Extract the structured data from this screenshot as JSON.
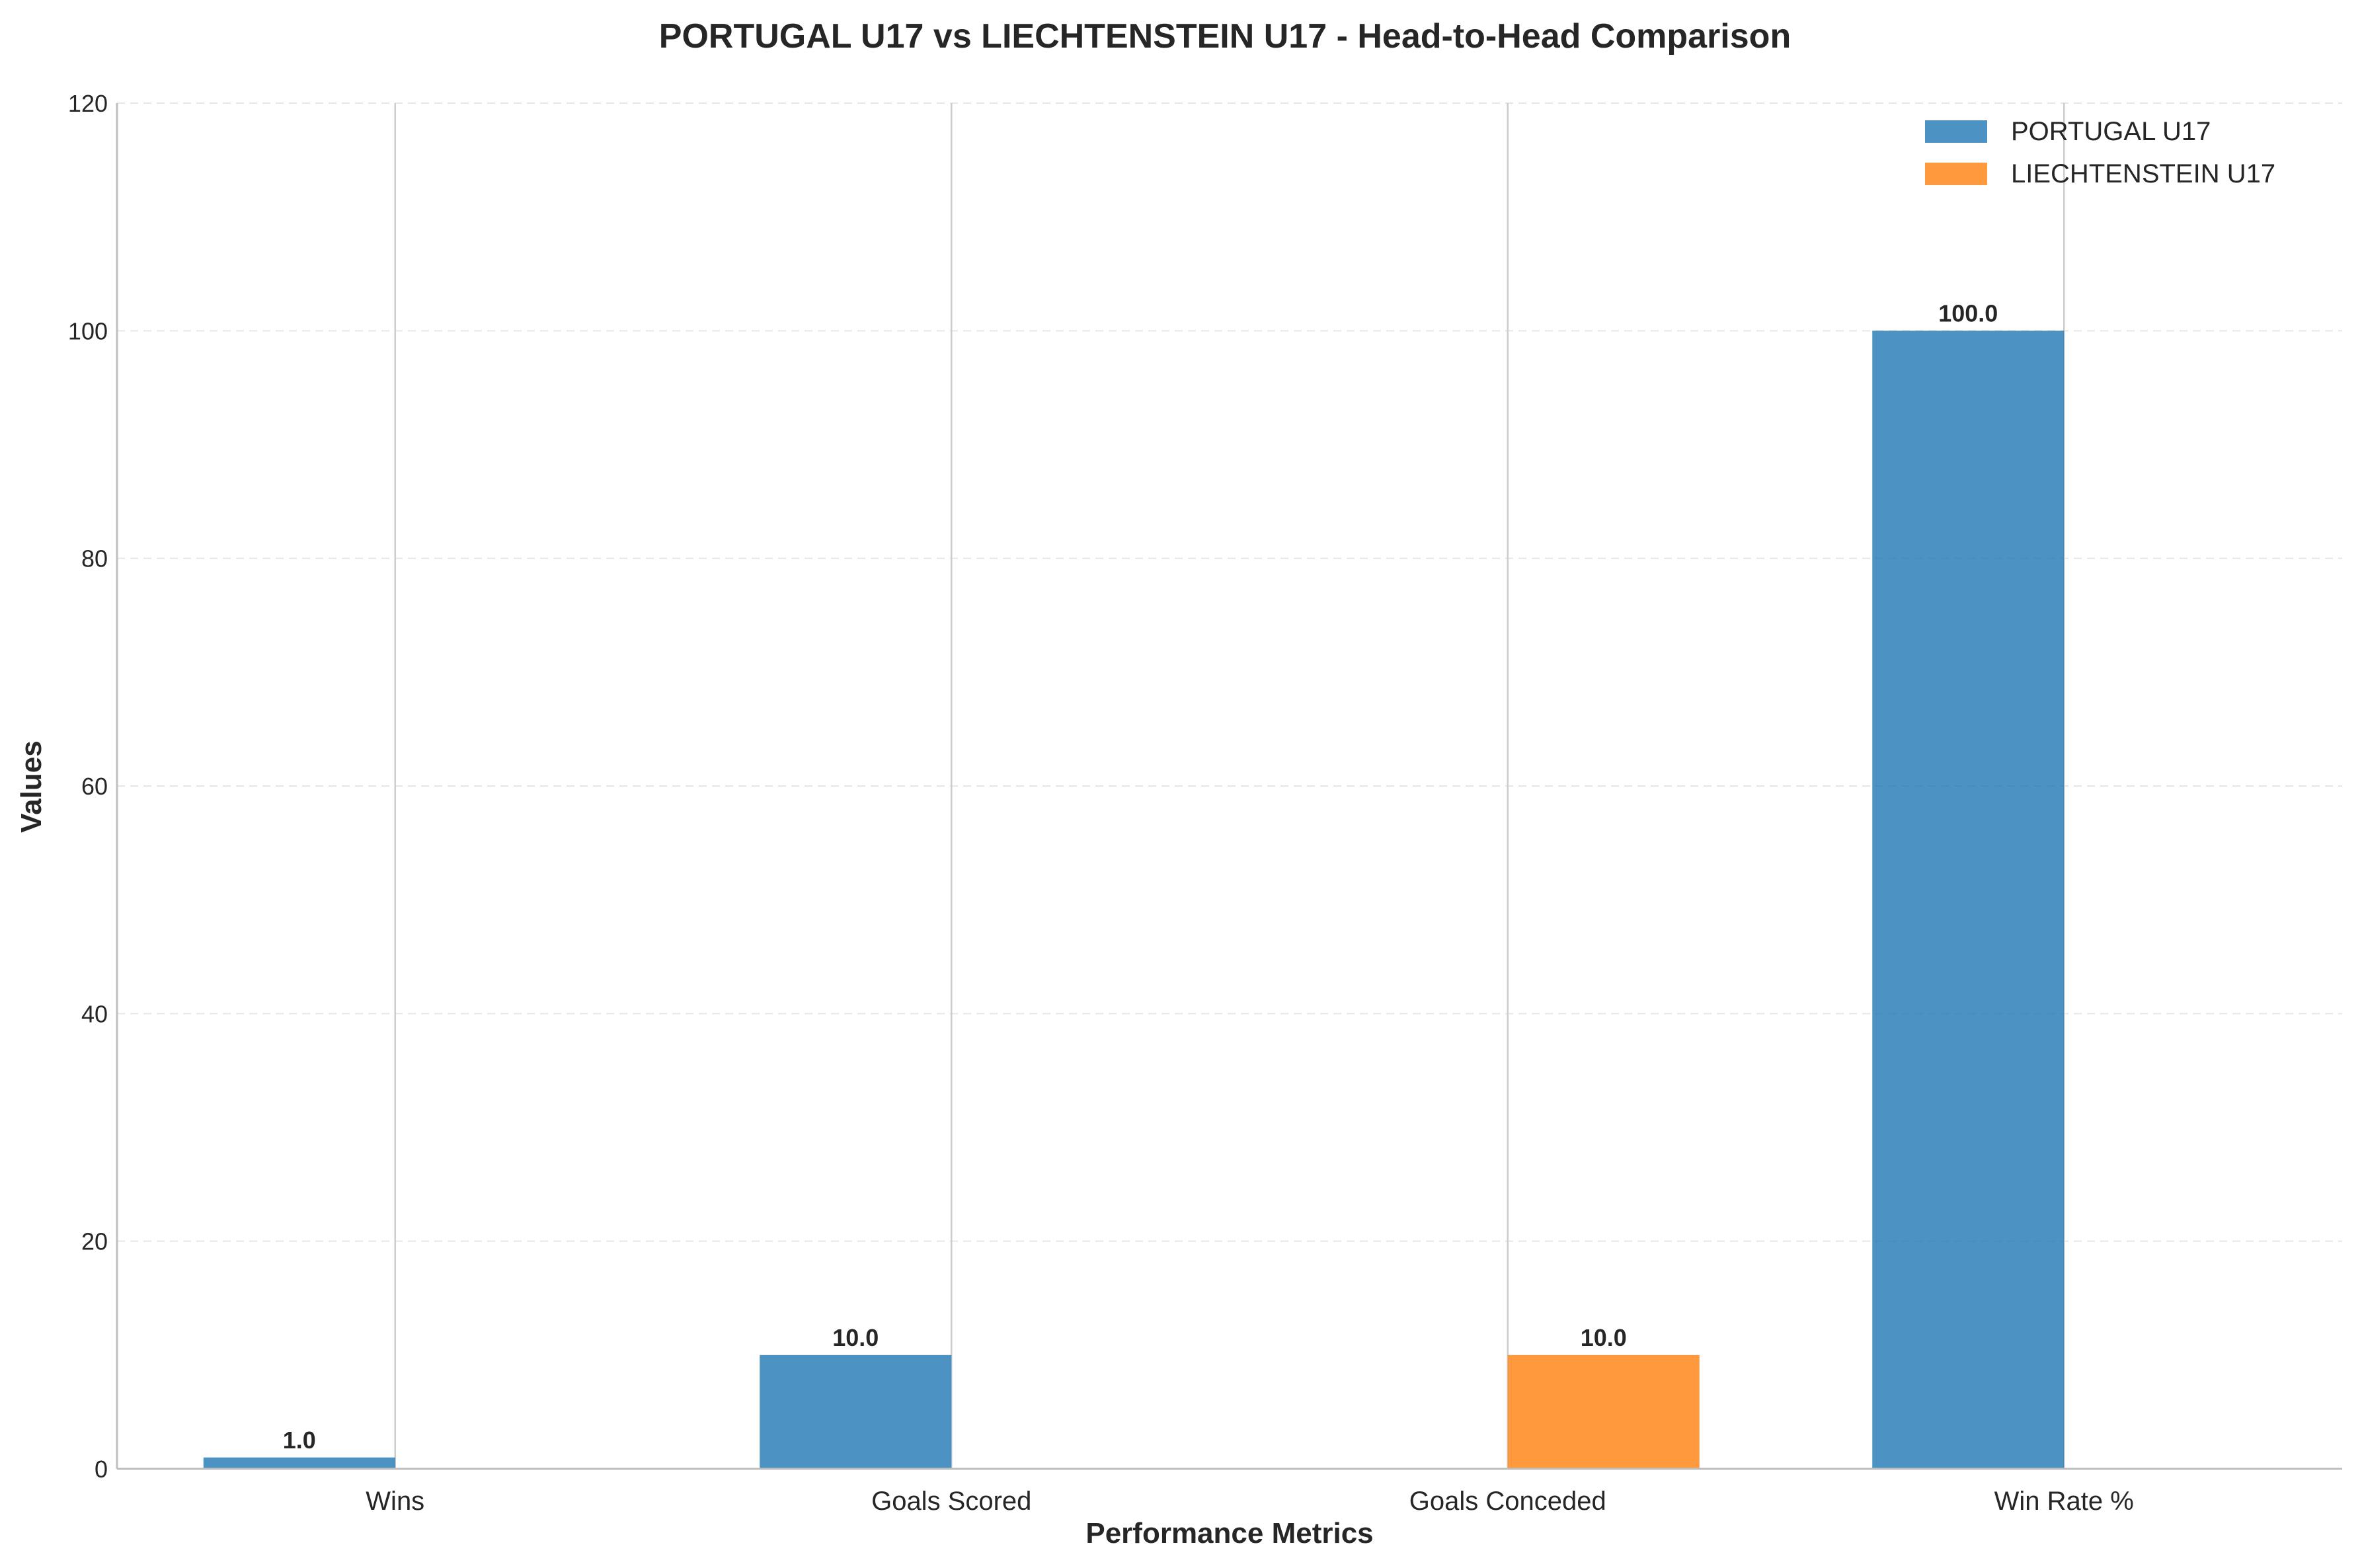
{
  "chart_data": {
    "type": "bar",
    "title": "PORTUGAL U17 vs LIECHTENSTEIN U17 - Head-to-Head Comparison",
    "xlabel": "Performance Metrics",
    "ylabel": "Values",
    "categories": [
      "Wins",
      "Goals Scored",
      "Goals Conceded",
      "Win Rate %"
    ],
    "series": [
      {
        "name": "PORTUGAL U17",
        "color": "#1f77b4",
        "values": [
          1.0,
          10.0,
          0.0,
          100.0
        ],
        "labels": [
          "1.0",
          "10.0",
          "",
          "100.0"
        ]
      },
      {
        "name": "LIECHTENSTEIN U17",
        "color": "#ff7f0e",
        "values": [
          0.0,
          0.0,
          10.0,
          0.0
        ],
        "labels": [
          "",
          "",
          "10.0",
          ""
        ]
      }
    ],
    "ylim": [
      0,
      120
    ],
    "yticks": [
      0,
      20,
      40,
      60,
      80,
      100,
      120
    ],
    "grid": true,
    "legend_position": "top-right"
  }
}
